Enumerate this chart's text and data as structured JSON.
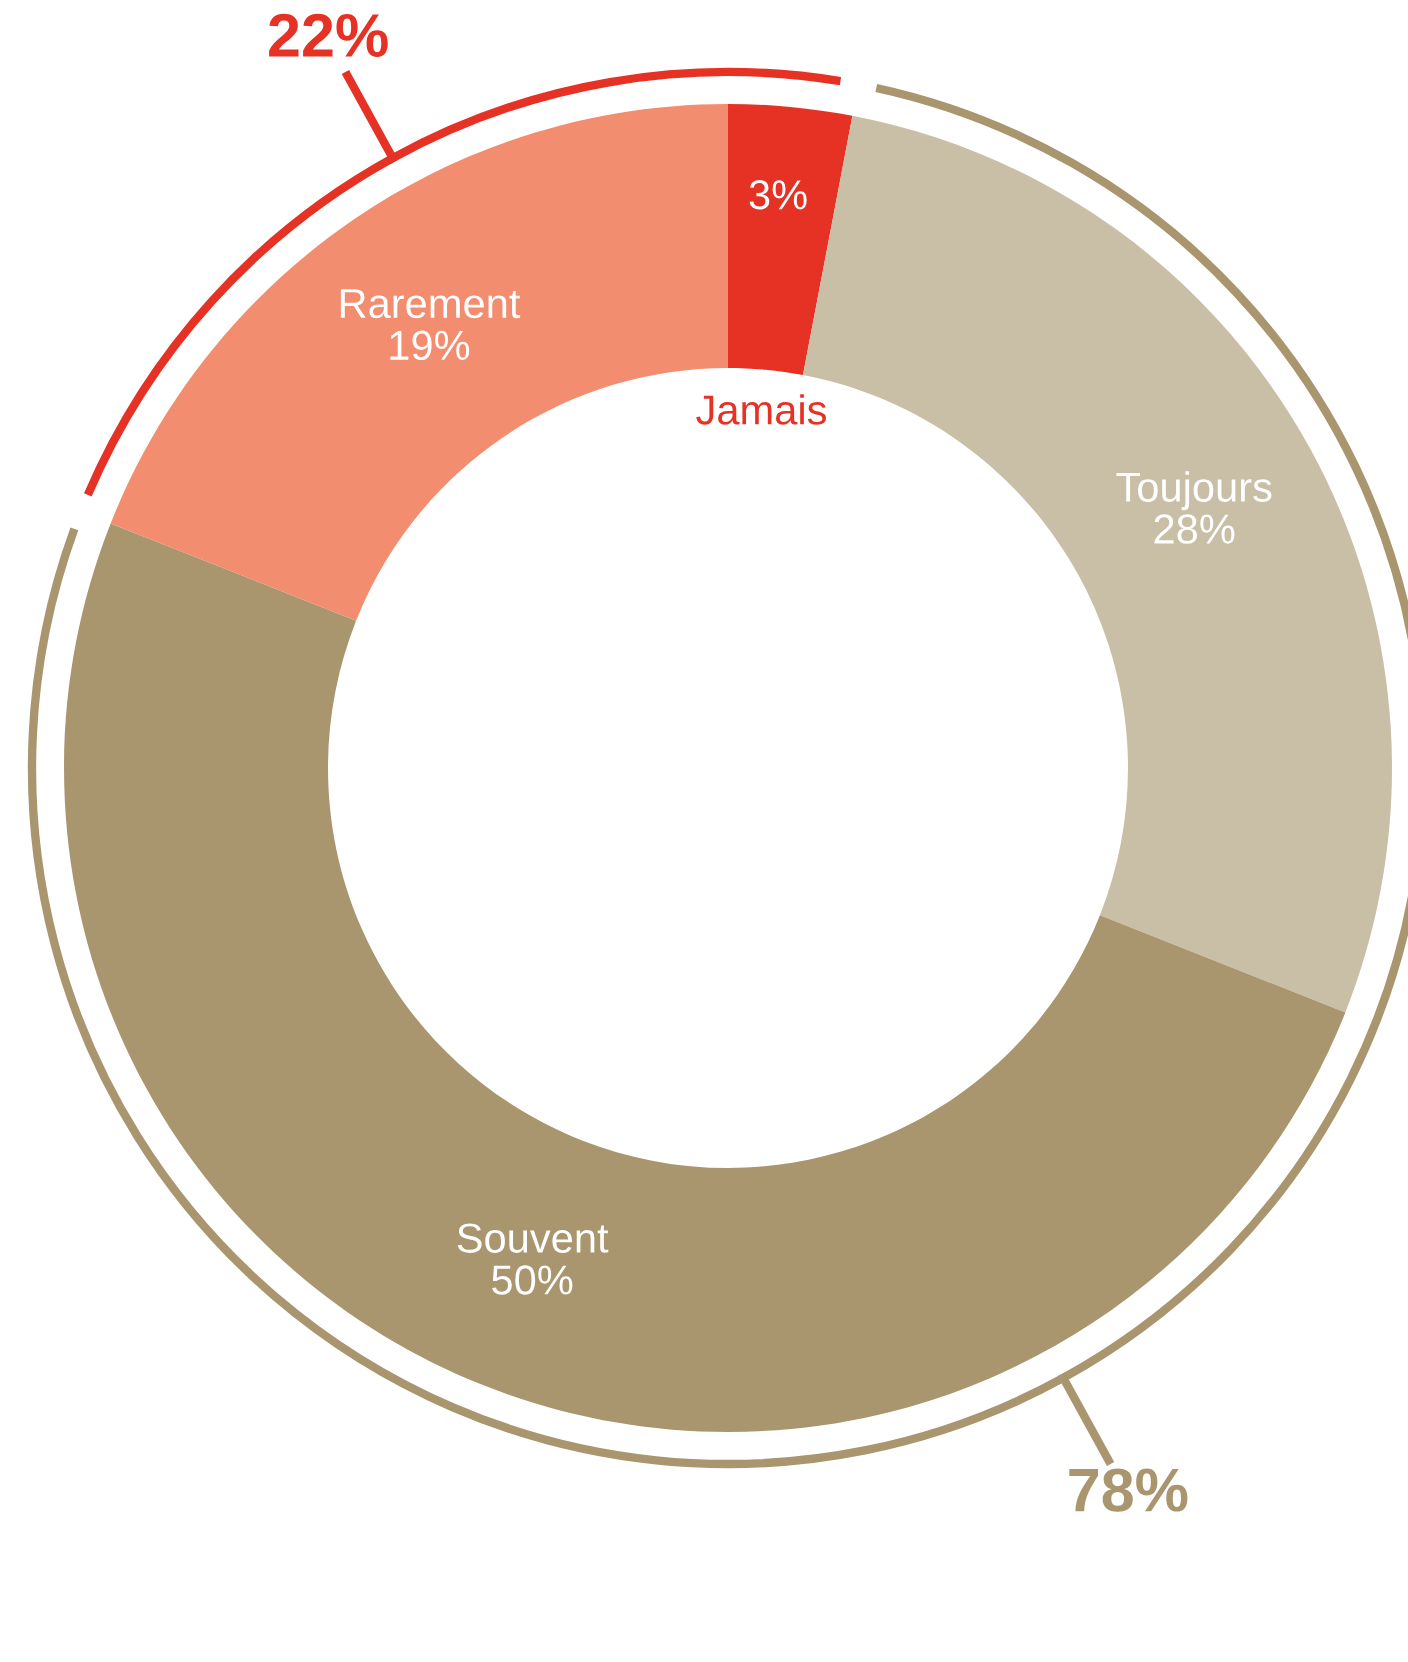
{
  "chart_data": {
    "type": "donut",
    "categories": [
      "Jamais",
      "Toujours",
      "Souvent",
      "Rarement"
    ],
    "values": [
      3,
      28,
      50,
      19
    ],
    "value_labels": [
      "3%",
      "28%",
      "50%",
      "19%"
    ],
    "colors": [
      "#e53224",
      "#c9bfa6",
      "#a9966f",
      "#f28d6f"
    ],
    "annotations": [
      "22%",
      "78%"
    ],
    "legend": false
  }
}
